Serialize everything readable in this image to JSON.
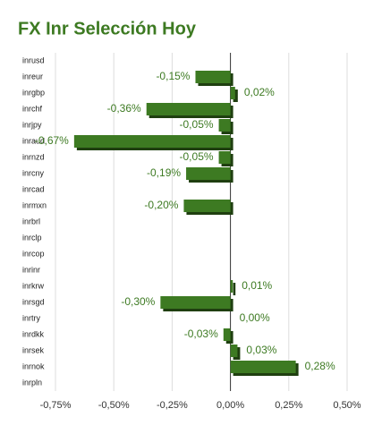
{
  "chart_data": {
    "type": "hbar",
    "title": "FX Inr Selección Hoy",
    "categories": [
      "inrusd",
      "inreur",
      "inrgbp",
      "inrchf",
      "inrjpy",
      "inraud",
      "inrnzd",
      "inrcny",
      "inrcad",
      "inrmxn",
      "inrbrl",
      "inrclp",
      "inrcop",
      "inrinr",
      "inrkrw",
      "inrsgd",
      "inrtry",
      "inrdkk",
      "inrsek",
      "inrnok",
      "inrpln"
    ],
    "values": [
      null,
      -0.15,
      0.02,
      -0.36,
      -0.05,
      -0.67,
      -0.05,
      -0.19,
      null,
      -0.2,
      null,
      null,
      null,
      null,
      0.01,
      -0.3,
      0.0,
      -0.03,
      0.03,
      0.28,
      null
    ],
    "value_labels": [
      null,
      "-0,15%",
      "0,02%",
      "-0,36%",
      "-0,05%",
      "-0,67%",
      "-0,05%",
      "-0,19%",
      null,
      "-0,20%",
      null,
      null,
      null,
      null,
      "0,01%",
      "-0,30%",
      "0,00%",
      "-0,03%",
      "0,03%",
      "0,28%",
      null
    ],
    "color": "#3d7a22",
    "xlim": [
      -0.75,
      0.5
    ],
    "xticks": [
      {
        "value": -0.75,
        "label": "-0,75%"
      },
      {
        "value": -0.5,
        "label": "-0,50%"
      },
      {
        "value": -0.25,
        "label": "-0,25%"
      },
      {
        "value": 0,
        "label": "0,00%"
      },
      {
        "value": 0.25,
        "label": "0,25%"
      },
      {
        "value": 0.5,
        "label": "0,50%"
      }
    ],
    "grid": true
  }
}
